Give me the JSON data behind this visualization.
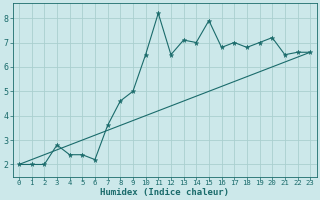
{
  "xlabel": "Humidex (Indice chaleur)",
  "bg_color": "#cce8ea",
  "line_color": "#1a6b6b",
  "grid_color": "#aacfcf",
  "xlim": [
    -0.5,
    23.5
  ],
  "ylim": [
    1.5,
    8.6
  ],
  "xticks": [
    0,
    1,
    2,
    3,
    4,
    5,
    6,
    7,
    8,
    9,
    10,
    11,
    12,
    13,
    14,
    15,
    16,
    17,
    18,
    19,
    20,
    21,
    22,
    23
  ],
  "yticks": [
    2,
    3,
    4,
    5,
    6,
    7,
    8
  ],
  "jagged_x": [
    0,
    1,
    2,
    3,
    4,
    5,
    6,
    7,
    8,
    9,
    10,
    11,
    12,
    13,
    14,
    15,
    16,
    17,
    18,
    19,
    20,
    21,
    22,
    23
  ],
  "jagged_y": [
    2.0,
    2.0,
    2.0,
    2.8,
    2.4,
    2.4,
    2.2,
    3.6,
    4.6,
    5.0,
    6.5,
    8.2,
    6.5,
    7.1,
    7.0,
    7.9,
    6.8,
    7.0,
    6.8,
    7.0,
    7.2,
    6.5,
    6.6,
    6.6
  ],
  "trend_x": [
    0,
    23
  ],
  "trend_y": [
    2.0,
    6.6
  ]
}
